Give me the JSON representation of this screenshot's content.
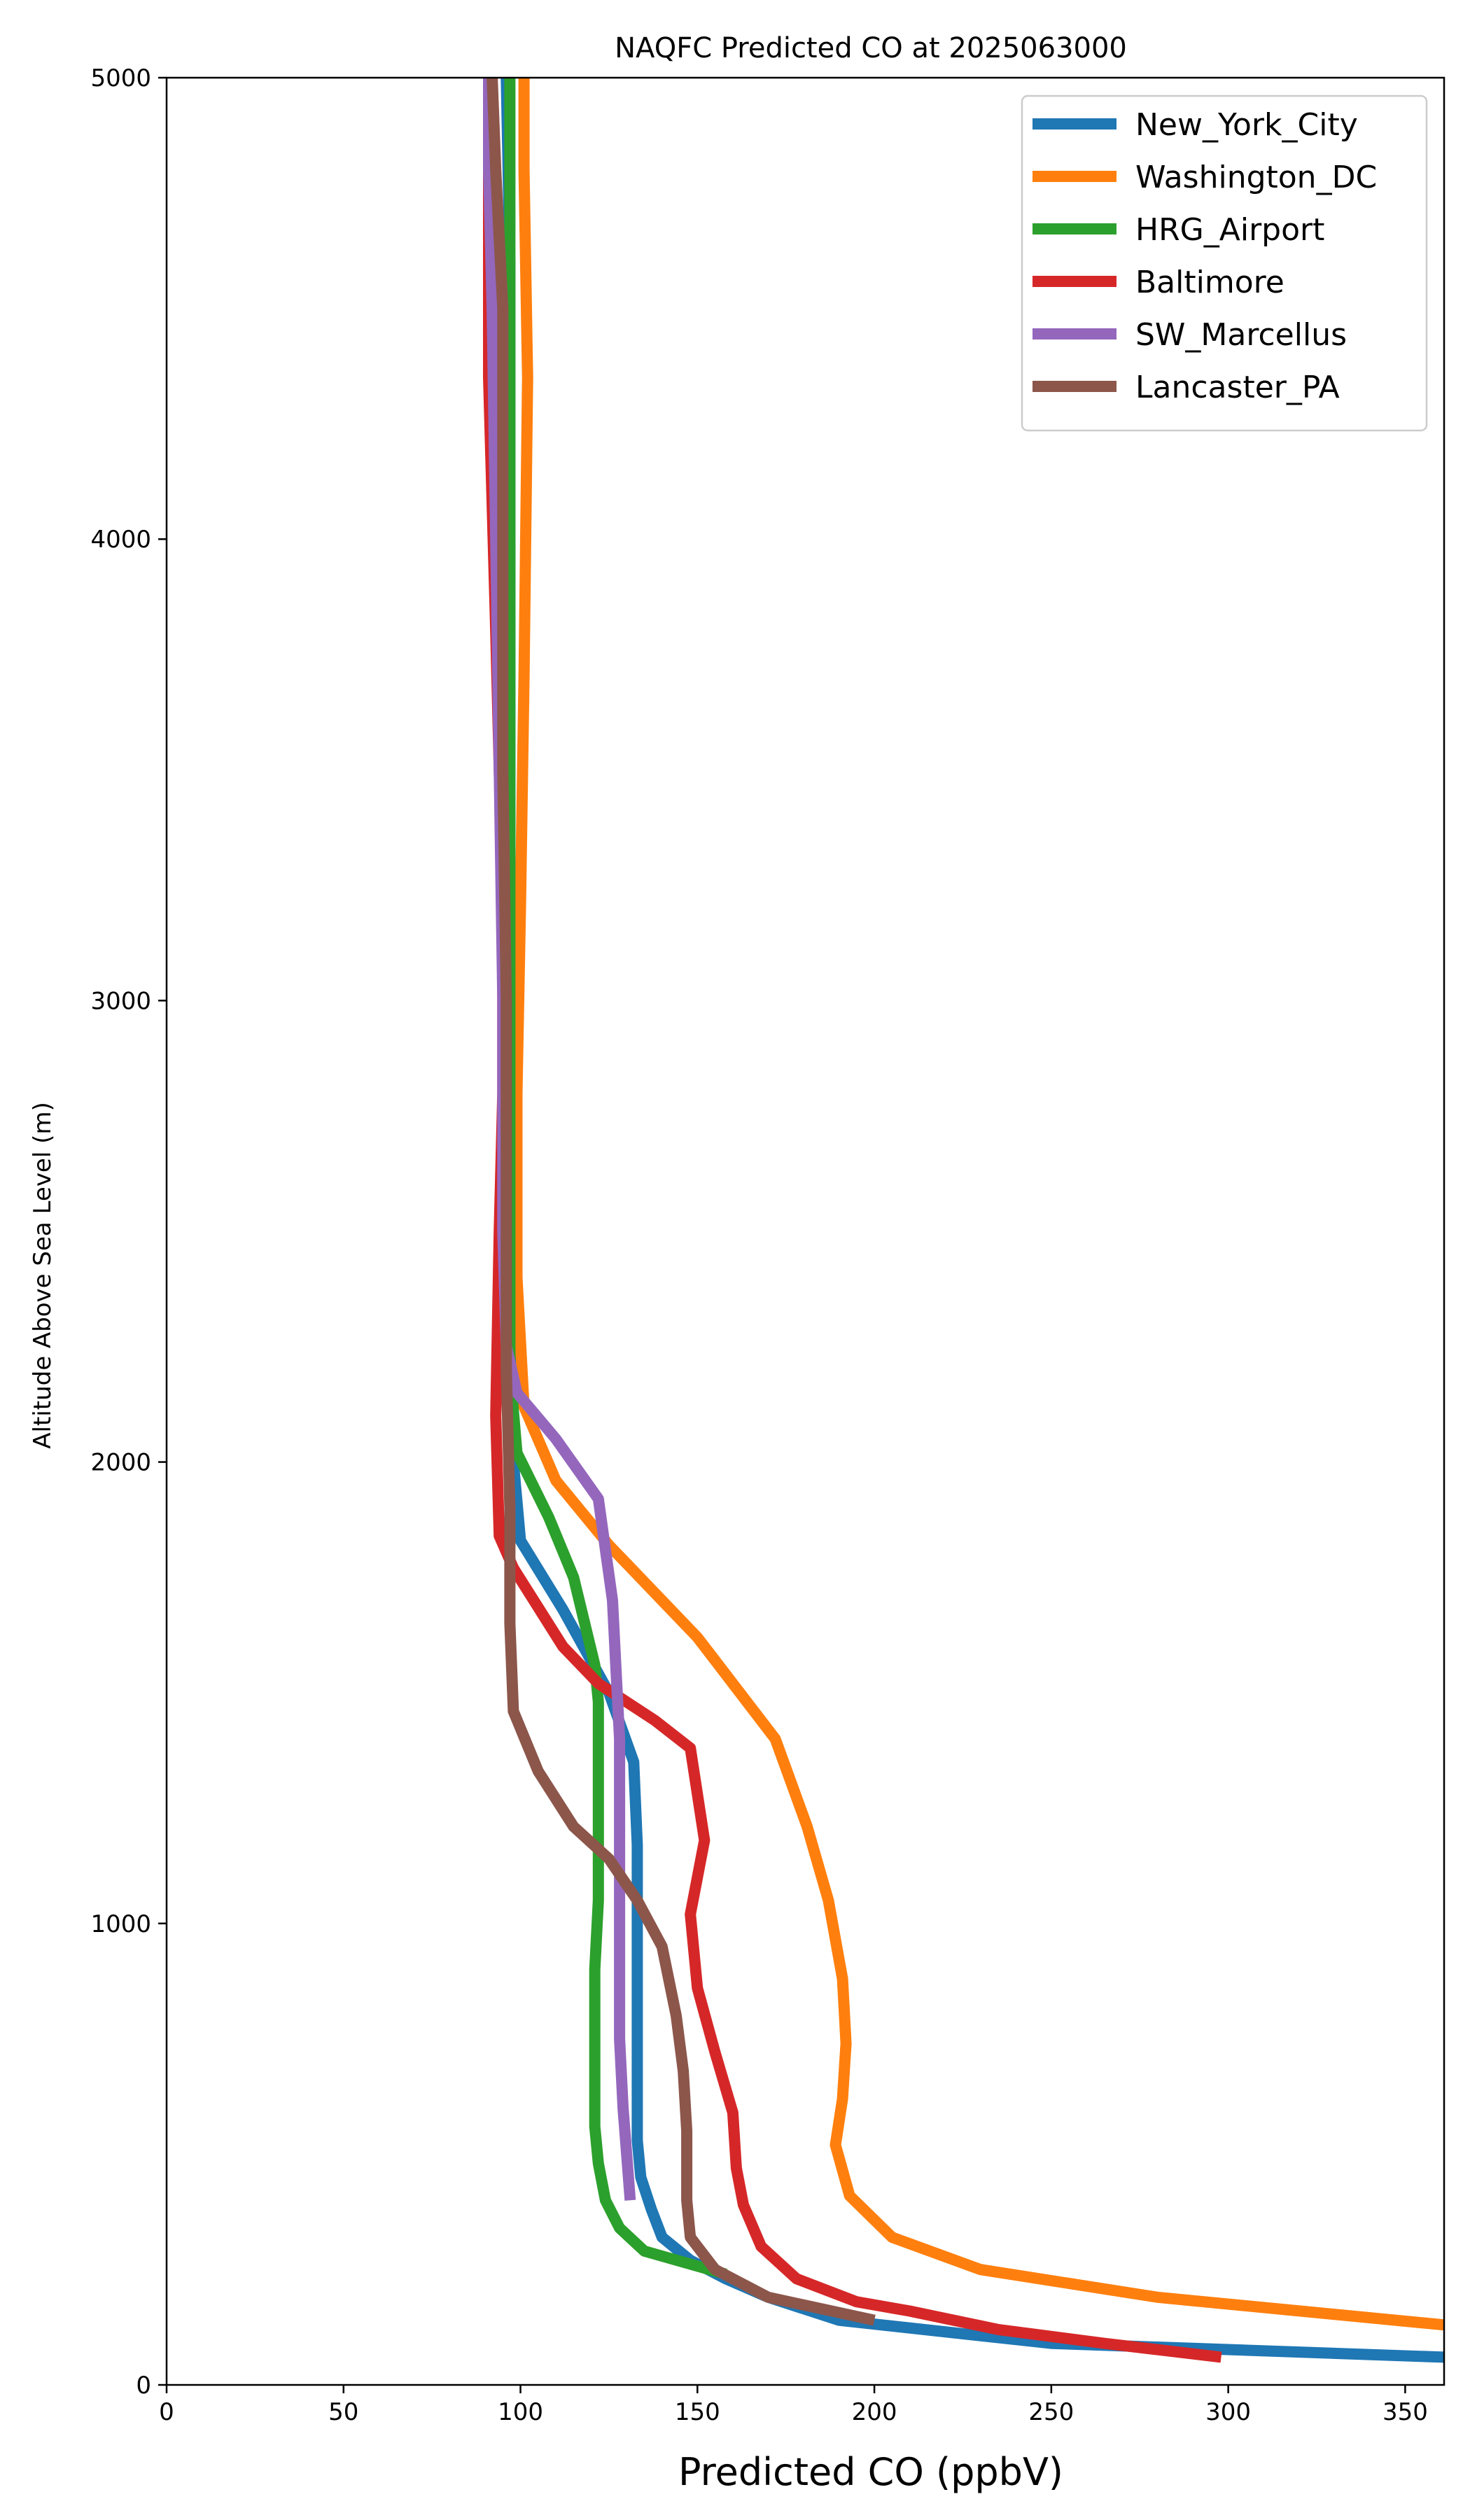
{
  "chart_data": {
    "type": "line",
    "title": "NAQFC Predicted CO at 2025063000",
    "xlabel": "Predicted CO (ppbV)",
    "ylabel": "Altitude Above Sea Level (m)",
    "xlim": [
      0,
      361
    ],
    "ylim": [
      0,
      5000
    ],
    "xticks": [
      0,
      50,
      100,
      150,
      200,
      250,
      300,
      350
    ],
    "yticks": [
      0,
      1000,
      2000,
      3000,
      4000,
      5000
    ],
    "xtick_labels": [
      "0",
      "50",
      "100",
      "150",
      "200",
      "250",
      "300",
      "350"
    ],
    "ytick_labels": [
      "0",
      "1000",
      "2000",
      "3000",
      "4000",
      "5000"
    ],
    "grid": false,
    "legend_position": "top-right",
    "series": [
      {
        "name": "New_York_City",
        "color": "#1f77b4",
        "points": [
          [
            361,
            60
          ],
          [
            250,
            90
          ],
          [
            190,
            140
          ],
          [
            170,
            190
          ],
          [
            158,
            230
          ],
          [
            148,
            270
          ],
          [
            140,
            320
          ],
          [
            137,
            380
          ],
          [
            134,
            450
          ],
          [
            133,
            530
          ],
          [
            133,
            650
          ],
          [
            133,
            800
          ],
          [
            133,
            1000
          ],
          [
            133,
            1170
          ],
          [
            132,
            1350
          ],
          [
            125,
            1500
          ],
          [
            112,
            1680
          ],
          [
            100,
            1830
          ],
          [
            98,
            2000
          ],
          [
            97,
            2400
          ],
          [
            97,
            3000
          ],
          [
            97,
            3600
          ],
          [
            97,
            4200
          ],
          [
            97,
            4600
          ],
          [
            96,
            5000
          ]
        ]
      },
      {
        "name": "Washington_DC",
        "color": "#ff7f0e",
        "points": [
          [
            361,
            130
          ],
          [
            280,
            190
          ],
          [
            230,
            250
          ],
          [
            205,
            320
          ],
          [
            193,
            410
          ],
          [
            189,
            520
          ],
          [
            191,
            620
          ],
          [
            192,
            740
          ],
          [
            191,
            880
          ],
          [
            187,
            1050
          ],
          [
            181,
            1210
          ],
          [
            172,
            1400
          ],
          [
            150,
            1620
          ],
          [
            125,
            1820
          ],
          [
            110,
            1960
          ],
          [
            101,
            2120
          ],
          [
            99,
            2400
          ],
          [
            99,
            2800
          ],
          [
            100,
            3200
          ],
          [
            101,
            3700
          ],
          [
            102,
            4350
          ],
          [
            101,
            4800
          ],
          [
            101,
            5000
          ]
        ]
      },
      {
        "name": "HRG_Airport",
        "color": "#2ca02c",
        "points": [
          [
            158,
            240
          ],
          [
            135,
            290
          ],
          [
            128,
            340
          ],
          [
            124,
            400
          ],
          [
            122,
            480
          ],
          [
            121,
            560
          ],
          [
            121,
            680
          ],
          [
            121,
            800
          ],
          [
            121,
            900
          ],
          [
            122,
            1050
          ],
          [
            122,
            1200
          ],
          [
            122,
            1350
          ],
          [
            122,
            1480
          ],
          [
            121,
            1560
          ],
          [
            115,
            1750
          ],
          [
            108,
            1880
          ],
          [
            99,
            2020
          ],
          [
            97,
            2200
          ],
          [
            97,
            2500
          ],
          [
            97,
            3000
          ],
          [
            97,
            3500
          ],
          [
            97,
            4000
          ],
          [
            97,
            4500
          ],
          [
            97,
            5000
          ]
        ]
      },
      {
        "name": "Baltimore",
        "color": "#d62728",
        "points": [
          [
            298,
            60
          ],
          [
            265,
            90
          ],
          [
            235,
            120
          ],
          [
            210,
            160
          ],
          [
            195,
            180
          ],
          [
            178,
            230
          ],
          [
            168,
            300
          ],
          [
            163,
            390
          ],
          [
            161,
            470
          ],
          [
            160,
            590
          ],
          [
            155,
            720
          ],
          [
            150,
            860
          ],
          [
            148,
            1020
          ],
          [
            152,
            1180
          ],
          [
            148,
            1380
          ],
          [
            138,
            1440
          ],
          [
            122,
            1520
          ],
          [
            112,
            1600
          ],
          [
            98,
            1770
          ],
          [
            94,
            1840
          ],
          [
            93,
            2100
          ],
          [
            94,
            2500
          ],
          [
            95,
            2800
          ],
          [
            95,
            3200
          ],
          [
            93,
            3800
          ],
          [
            91,
            4350
          ],
          [
            91,
            4800
          ],
          [
            92,
            5000
          ]
        ]
      },
      {
        "name": "SW_Marcellus",
        "color": "#9467bd",
        "points": [
          [
            131,
            400
          ],
          [
            130,
            500
          ],
          [
            129,
            600
          ],
          [
            128,
            750
          ],
          [
            128,
            900
          ],
          [
            128,
            1050
          ],
          [
            128,
            1200
          ],
          [
            128,
            1400
          ],
          [
            127,
            1550
          ],
          [
            126,
            1700
          ],
          [
            122,
            1920
          ],
          [
            110,
            2050
          ],
          [
            99,
            2150
          ],
          [
            96,
            2250
          ],
          [
            95,
            2500
          ],
          [
            95,
            3000
          ],
          [
            94,
            3500
          ],
          [
            93,
            4000
          ],
          [
            92,
            4500
          ],
          [
            91,
            4800
          ],
          [
            91,
            5000
          ]
        ]
      },
      {
        "name": "Lancaster_PA",
        "color": "#8c564b",
        "points": [
          [
            200,
            140
          ],
          [
            170,
            190
          ],
          [
            155,
            250
          ],
          [
            148,
            320
          ],
          [
            147,
            400
          ],
          [
            147,
            550
          ],
          [
            146,
            680
          ],
          [
            144,
            800
          ],
          [
            140,
            950
          ],
          [
            133,
            1050
          ],
          [
            125,
            1140
          ],
          [
            115,
            1210
          ],
          [
            105,
            1330
          ],
          [
            98,
            1460
          ],
          [
            97,
            1650
          ],
          [
            97,
            1900
          ],
          [
            96,
            2200
          ],
          [
            96,
            2600
          ],
          [
            96,
            3000
          ],
          [
            95,
            3500
          ],
          [
            95,
            4000
          ],
          [
            95,
            4500
          ],
          [
            93,
            4800
          ],
          [
            92,
            5000
          ]
        ]
      }
    ]
  }
}
